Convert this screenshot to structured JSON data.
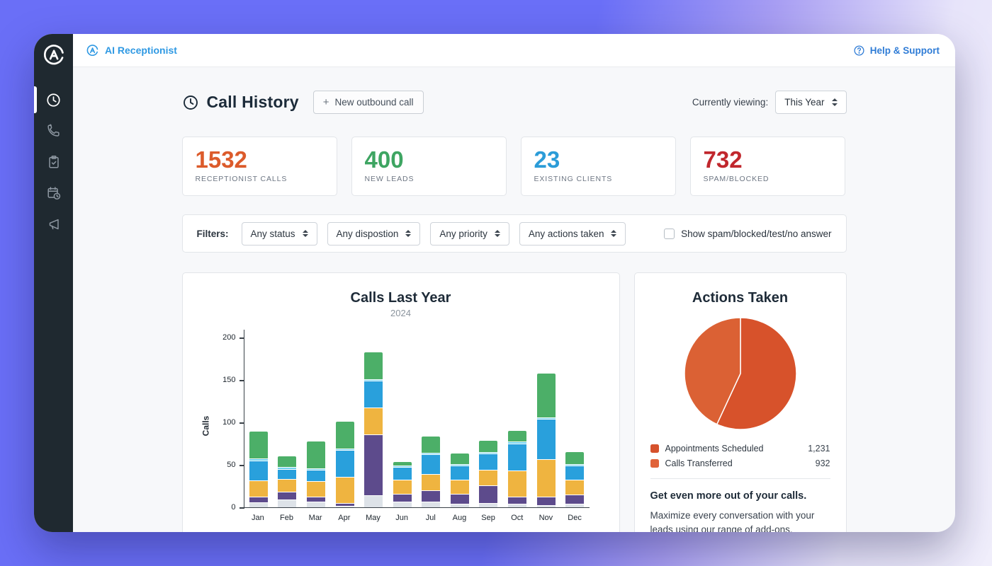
{
  "app": {
    "brand": "AI Receptionist",
    "help_label": "Help & Support"
  },
  "sidebar": {
    "items": [
      {
        "icon": "clock-icon",
        "active": true
      },
      {
        "icon": "phone-icon",
        "active": false
      },
      {
        "icon": "clipboard-check-icon",
        "active": false
      },
      {
        "icon": "calendar-clock-icon",
        "active": false
      },
      {
        "icon": "megaphone-icon",
        "active": false
      }
    ]
  },
  "header": {
    "title": "Call History",
    "new_call_button": "New outbound call",
    "viewing_label": "Currently viewing:",
    "viewing_value": "This Year"
  },
  "stats": [
    {
      "value": "1532",
      "label": "RECEPTIONIST CALLS",
      "color": "#dc5b2b"
    },
    {
      "value": "400",
      "label": "NEW LEADS",
      "color": "#3ea562"
    },
    {
      "value": "23",
      "label": "EXISTING CLIENTS",
      "color": "#2b9cd8"
    },
    {
      "value": "732",
      "label": "SPAM/BLOCKED",
      "color": "#c1272d"
    }
  ],
  "filters": {
    "label": "Filters:",
    "dropdowns": [
      "Any status",
      "Any dispostion",
      "Any priority",
      "Any actions taken"
    ],
    "checkbox_label": "Show spam/blocked/test/no answer",
    "checked": false
  },
  "chart_data": [
    {
      "type": "bar",
      "stacked": true,
      "title": "Calls Last Year",
      "subtitle": "2024",
      "ylabel": "Calls",
      "ylim": [
        0,
        200
      ],
      "yticks": [
        0,
        50,
        100,
        150,
        200
      ],
      "grid": false,
      "legend_position": "none",
      "categories": [
        "Jan",
        "Feb",
        "Mar",
        "Apr",
        "May",
        "Jun",
        "Jul",
        "Aug",
        "Sep",
        "Oct",
        "Nov",
        "Dec"
      ],
      "series": [
        {
          "name": "gray-segment",
          "color": "#dde2e8",
          "values": [
            5,
            8,
            6,
            1,
            13,
            6,
            6,
            3,
            4,
            3,
            2,
            3
          ]
        },
        {
          "name": "purple-segment",
          "color": "#5d4b8c",
          "values": [
            6,
            9,
            5,
            2,
            71,
            8,
            12,
            11,
            20,
            8,
            9,
            10
          ]
        },
        {
          "name": "yellow-segment",
          "color": "#efb440",
          "values": [
            18,
            14,
            17,
            30,
            31,
            16,
            19,
            16,
            18,
            30,
            43,
            17
          ]
        },
        {
          "name": "blue-segment",
          "color": "#29a0dc",
          "values": [
            23,
            11,
            13,
            31,
            31,
            14,
            22,
            16,
            18,
            31,
            47,
            16
          ]
        },
        {
          "name": "lightblue-segment",
          "color": "#6fd0ee",
          "values": [
            1,
            1,
            1,
            1,
            1,
            1,
            1,
            1,
            1,
            1,
            1,
            1
          ]
        },
        {
          "name": "green-segment",
          "color": "#4caf68",
          "values": [
            32,
            13,
            31,
            32,
            31,
            4,
            19,
            12,
            13,
            13,
            51,
            14
          ]
        }
      ]
    },
    {
      "type": "pie",
      "title": "Actions Taken",
      "labels": [
        "Appointments Scheduled",
        "Calls Transferred"
      ],
      "values": [
        1231,
        932
      ],
      "colors": [
        "#d7522b",
        "#db6134"
      ],
      "legend_position": "bottom"
    }
  ],
  "actions_panel": {
    "title": "Actions Taken",
    "legend": [
      {
        "label": "Appointments Scheduled",
        "value": "1,231",
        "color": "#d6522c"
      },
      {
        "label": "Calls Transferred",
        "value": "932",
        "color": "#e0633a"
      }
    ],
    "promo_title": "Get even more out of your calls.",
    "promo_text": "Maximize every conversation with your leads using our range of add-ons."
  }
}
